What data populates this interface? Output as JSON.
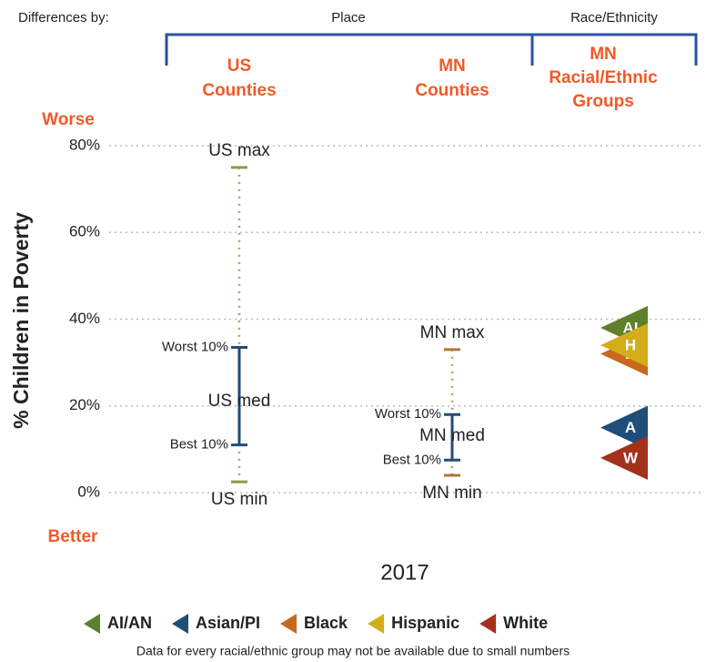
{
  "chart_data": {
    "type": "range",
    "differences_by": "Differences by:",
    "groups": [
      "Place",
      "Race/Ethnicity"
    ],
    "worse": "Worse",
    "better": "Better",
    "ylabel": "% Children in Poverty",
    "xlabel": "2017",
    "ylim": [
      0,
      80
    ],
    "yticks": [
      {
        "value": 0,
        "label": "0%"
      },
      {
        "value": 20,
        "label": "20%"
      },
      {
        "value": 40,
        "label": "40%"
      },
      {
        "value": 60,
        "label": "60%"
      },
      {
        "value": 80,
        "label": "80%"
      }
    ],
    "grid": true,
    "columns": [
      {
        "title": [
          "US",
          "Counties"
        ],
        "stats": {
          "max": 75,
          "worst10": 33.5,
          "med": 21,
          "best10": 11,
          "min": 2.5
        },
        "labels": {
          "max": "US max",
          "worst10": "Worst 10%",
          "med": "US med",
          "best10": "Best 10%",
          "min": "US min"
        }
      },
      {
        "title": [
          "MN",
          "Counties"
        ],
        "stats": {
          "max": 33,
          "worst10": 18,
          "med": 13,
          "best10": 7.5,
          "min": 4
        },
        "labels": {
          "max": "MN max",
          "worst10": "Worst 10%",
          "med": "MN med",
          "best10": "Best 10%",
          "min": "MN min"
        }
      }
    ],
    "groups_title": [
      "MN",
      "Racial/Ethnic",
      "Groups"
    ],
    "series": [
      {
        "name": "AI/AN",
        "abbr": "AI",
        "color": "#5f7f2a",
        "value": 38
      },
      {
        "name": "Asian/PI",
        "abbr": "A",
        "color": "#1f4e79",
        "value": 15
      },
      {
        "name": "Black",
        "abbr": "B",
        "color": "#c8691e",
        "value": 32
      },
      {
        "name": "Hispanic",
        "abbr": "H",
        "color": "#d4ae1a",
        "value": 34
      },
      {
        "name": "White",
        "abbr": "W",
        "color": "#a3311b",
        "value": 8
      }
    ],
    "footnote": "Data for every racial/ethnic group may not be available due to small numbers"
  }
}
